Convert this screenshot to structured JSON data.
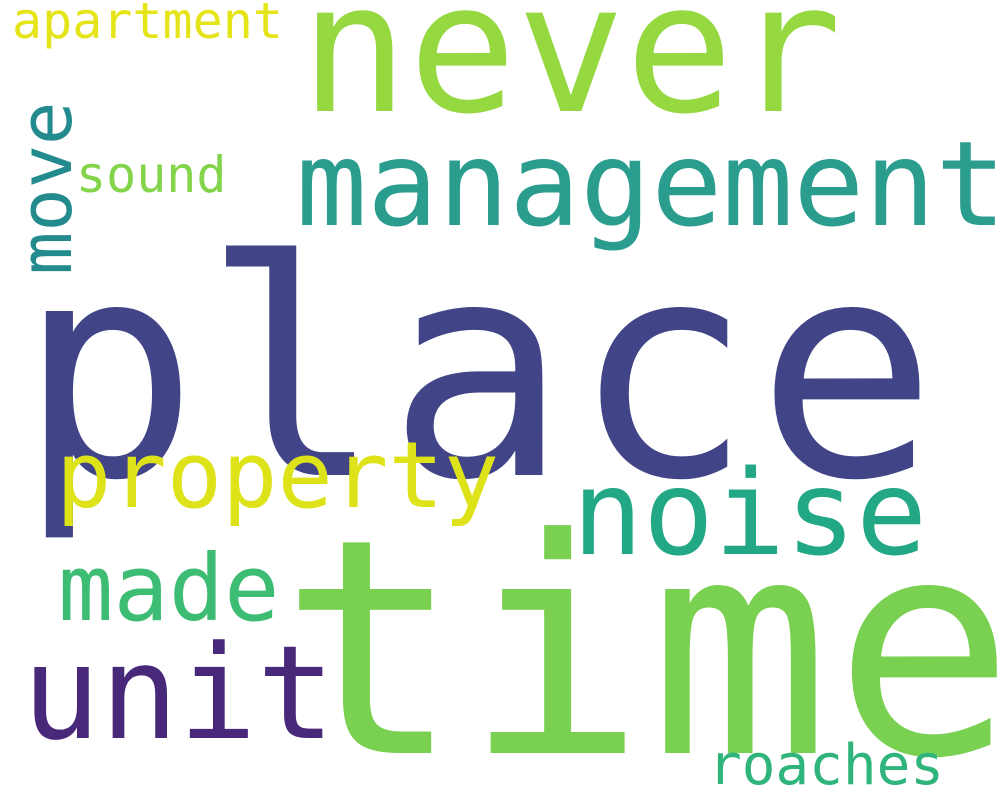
{
  "background": "#ffffff",
  "words": {
    "place": {
      "text": "place",
      "color": "#414487"
    },
    "time": {
      "text": "time",
      "color": "#7ad151"
    },
    "never": {
      "text": "never",
      "color": "#95d840"
    },
    "management": {
      "text": "management",
      "color": "#2a9d8f"
    },
    "noise": {
      "text": "noise",
      "color": "#22a884"
    },
    "unit": {
      "text": "unit",
      "color": "#482878"
    },
    "property": {
      "text": "property",
      "color": "#dde318"
    },
    "made": {
      "text": "made",
      "color": "#3dbc74"
    },
    "move": {
      "text": "move",
      "color": "#238a8d"
    },
    "sound": {
      "text": "sound",
      "color": "#84d44b"
    },
    "apartment": {
      "text": "apartment",
      "color": "#e5e419"
    },
    "roaches": {
      "text": "roaches",
      "color": "#2fb47c"
    }
  }
}
